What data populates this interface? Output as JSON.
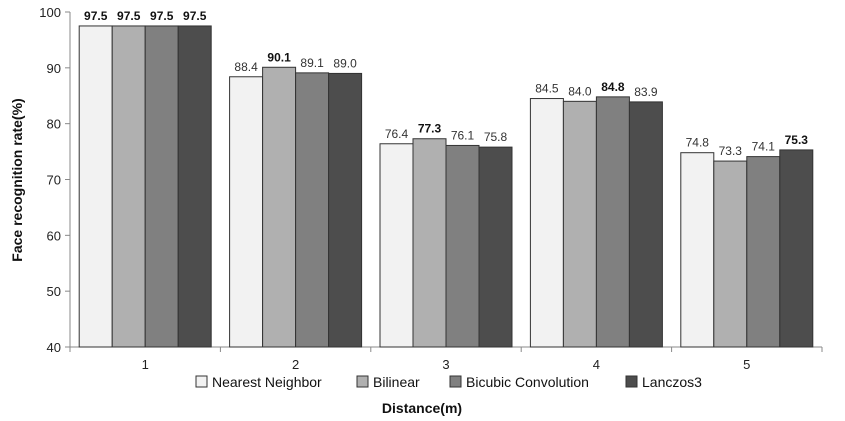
{
  "chart_data": {
    "type": "bar",
    "categories": [
      "1",
      "2",
      "3",
      "4",
      "5"
    ],
    "series": [
      {
        "name": "Nearest Neighbor",
        "values": [
          97.5,
          88.4,
          76.4,
          84.5,
          74.8
        ],
        "color": "#f2f2f2"
      },
      {
        "name": "Bilinear",
        "values": [
          97.5,
          90.1,
          77.3,
          84.0,
          73.3
        ],
        "color": "#b0b0b0"
      },
      {
        "name": "Bicubic Convolution",
        "values": [
          97.5,
          89.1,
          76.1,
          84.8,
          74.1
        ],
        "color": "#808080"
      },
      {
        "name": "Lanczos3",
        "values": [
          97.5,
          89.0,
          75.8,
          83.9,
          75.3
        ],
        "color": "#4d4d4d"
      }
    ],
    "data_labels": [
      [
        "97.5",
        "97.5",
        "97.5",
        "97.5"
      ],
      [
        "88.4",
        "90.1",
        "89.1",
        "89.0"
      ],
      [
        "76.4",
        "77.3",
        "76.1",
        "75.8"
      ],
      [
        "84.5",
        "84.0",
        "84.8",
        "83.9"
      ],
      [
        "74.8",
        "73.3",
        "74.1",
        "75.3"
      ]
    ],
    "bold_labels": [
      [
        true,
        true,
        true,
        true
      ],
      [
        false,
        true,
        false,
        false
      ],
      [
        false,
        true,
        false,
        false
      ],
      [
        false,
        false,
        true,
        false
      ],
      [
        false,
        false,
        false,
        true
      ]
    ],
    "xlabel": "Distance(m)",
    "ylabel": "Face recognition rate(%)",
    "ylim": [
      40,
      100
    ],
    "yticks": [
      "40",
      "50",
      "60",
      "70",
      "80",
      "90",
      "100"
    ],
    "grid": false,
    "legend_position": "bottom"
  }
}
